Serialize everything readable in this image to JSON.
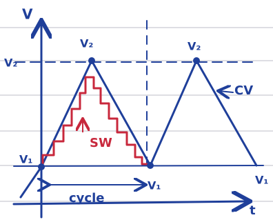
{
  "labels": {
    "y_axis": "V",
    "x_axis": "t",
    "v2_left": "V₂",
    "v2_peak_1": "V₂",
    "v2_peak_2": "V₂",
    "v1_left": "V₁",
    "v1_middle": "V₁",
    "v1_right": "V₁",
    "sw": "SW",
    "cv": "CV",
    "cycle": "cycle"
  }
}
